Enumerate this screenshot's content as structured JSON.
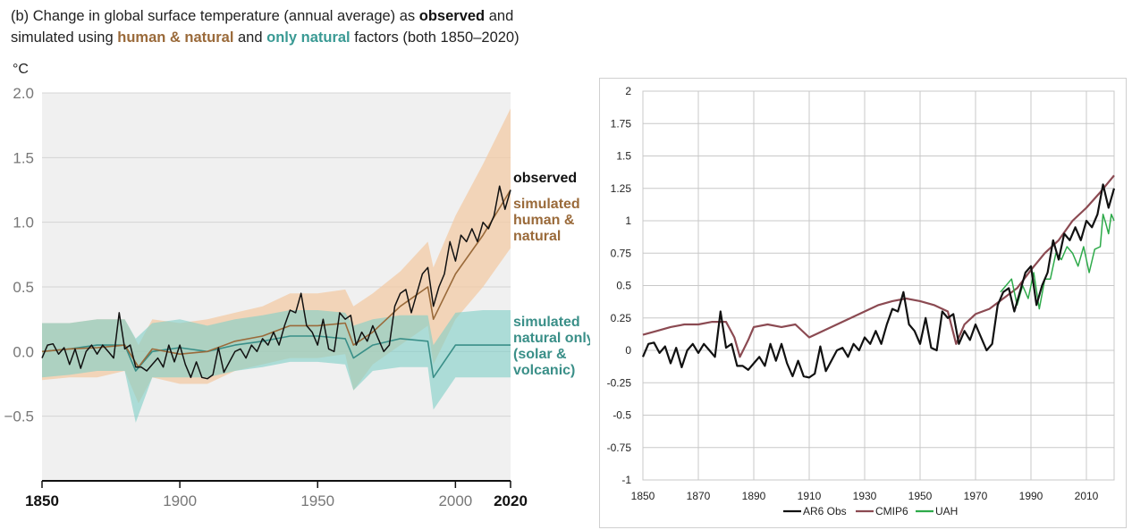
{
  "title": {
    "prefix": "(b) Change in global surface temperature (annual average) as ",
    "observed": "observed",
    "and1": " and",
    "line2_prefix": "simulated using ",
    "human": "human & natural",
    "and2": " and ",
    "natural": "only natural",
    "suffix": " factors (both 1850–2020)"
  },
  "colors": {
    "observed": "#111111",
    "human": "#9a6a3a",
    "human_band": "#f3cba6",
    "natural": "#3a8f88",
    "natural_band": "#7fcfc6",
    "plot_bg": "#f0f0f0",
    "cmip6": "#8b4a52",
    "uah": "#2eaa4a"
  },
  "chart_data": [
    {
      "type": "line",
      "title": "(b) Change in global surface temperature (annual average) as observed and simulated using human & natural and only natural factors (both 1850–2020)",
      "ylabel": "°C",
      "xlabel": "",
      "xlim": [
        1850,
        2020
      ],
      "ylim": [
        -1.0,
        2.0
      ],
      "yticks": [
        2.0,
        1.5,
        1.0,
        0.5,
        0.0,
        -0.5
      ],
      "ytick_labels": [
        "2.0",
        "1.5",
        "1.0",
        "0.5",
        "0.0",
        "−0.5"
      ],
      "xticks": [
        1850,
        1900,
        1950,
        2000,
        2020
      ],
      "xtick_labels": [
        "1850",
        "1900",
        "1950",
        "2000",
        "2020"
      ],
      "grid": true,
      "series_labels": {
        "observed": "observed",
        "human": [
          "simulated",
          "human &",
          "natural"
        ],
        "natural": [
          "simulated",
          "natural only",
          "(solar &",
          "volcanic)"
        ]
      },
      "series": [
        {
          "name": "observed",
          "x": [
            1850,
            1852,
            1854,
            1856,
            1858,
            1860,
            1862,
            1864,
            1866,
            1868,
            1870,
            1872,
            1874,
            1876,
            1878,
            1880,
            1882,
            1884,
            1886,
            1888,
            1890,
            1892,
            1894,
            1896,
            1898,
            1900,
            1902,
            1904,
            1906,
            1908,
            1910,
            1912,
            1914,
            1916,
            1918,
            1920,
            1922,
            1924,
            1926,
            1928,
            1930,
            1932,
            1934,
            1936,
            1938,
            1940,
            1942,
            1944,
            1946,
            1948,
            1950,
            1952,
            1954,
            1956,
            1958,
            1960,
            1962,
            1964,
            1966,
            1968,
            1970,
            1972,
            1974,
            1976,
            1978,
            1980,
            1982,
            1984,
            1986,
            1988,
            1990,
            1992,
            1994,
            1996,
            1998,
            2000,
            2002,
            2004,
            2006,
            2008,
            2010,
            2012,
            2014,
            2016,
            2018,
            2020
          ],
          "values": [
            -0.05,
            0.05,
            0.06,
            -0.02,
            0.03,
            -0.1,
            0.02,
            -0.13,
            0.0,
            0.05,
            -0.02,
            0.05,
            0.0,
            -0.05,
            0.3,
            0.02,
            0.05,
            -0.12,
            -0.12,
            -0.15,
            -0.1,
            -0.05,
            -0.12,
            0.05,
            -0.08,
            0.05,
            -0.1,
            -0.2,
            -0.08,
            -0.2,
            -0.21,
            -0.18,
            0.03,
            -0.16,
            -0.08,
            0.0,
            0.02,
            -0.05,
            0.05,
            0.0,
            0.1,
            0.05,
            0.15,
            0.05,
            0.2,
            0.32,
            0.3,
            0.45,
            0.2,
            0.15,
            0.05,
            0.25,
            0.02,
            0.0,
            0.3,
            0.25,
            0.28,
            0.05,
            0.15,
            0.08,
            0.2,
            0.1,
            0.0,
            0.05,
            0.35,
            0.45,
            0.48,
            0.3,
            0.45,
            0.6,
            0.65,
            0.35,
            0.5,
            0.6,
            0.85,
            0.7,
            0.9,
            0.85,
            0.95,
            0.85,
            1.0,
            0.95,
            1.05,
            1.28,
            1.1,
            1.25
          ]
        },
        {
          "name": "simulated human & natural",
          "x": [
            1850,
            1860,
            1870,
            1880,
            1885,
            1890,
            1900,
            1910,
            1920,
            1930,
            1940,
            1950,
            1960,
            1963,
            1970,
            1980,
            1990,
            1992,
            2000,
            2010,
            2020
          ],
          "values": [
            0.0,
            0.02,
            0.03,
            0.05,
            -0.12,
            0.02,
            -0.02,
            0.0,
            0.08,
            0.12,
            0.2,
            0.2,
            0.22,
            0.05,
            0.15,
            0.35,
            0.5,
            0.25,
            0.6,
            0.9,
            1.25
          ],
          "band_lower": [
            -0.22,
            -0.2,
            -0.2,
            -0.15,
            -0.4,
            -0.2,
            -0.25,
            -0.25,
            -0.15,
            -0.1,
            -0.05,
            -0.05,
            -0.02,
            -0.3,
            -0.1,
            0.05,
            0.2,
            -0.1,
            0.25,
            0.5,
            0.8
          ],
          "band_upper": [
            0.22,
            0.22,
            0.25,
            0.25,
            0.05,
            0.25,
            0.22,
            0.25,
            0.3,
            0.35,
            0.45,
            0.45,
            0.48,
            0.35,
            0.45,
            0.62,
            0.85,
            0.65,
            1.05,
            1.45,
            1.88
          ]
        },
        {
          "name": "simulated natural only (solar & volcanic)",
          "x": [
            1850,
            1860,
            1870,
            1880,
            1884,
            1890,
            1900,
            1910,
            1920,
            1930,
            1940,
            1950,
            1960,
            1963,
            1970,
            1980,
            1990,
            1992,
            2000,
            2010,
            2020
          ],
          "values": [
            0.0,
            0.02,
            0.05,
            0.05,
            -0.15,
            0.0,
            0.03,
            0.0,
            0.05,
            0.08,
            0.12,
            0.12,
            0.1,
            -0.05,
            0.05,
            0.1,
            0.08,
            -0.2,
            0.05,
            0.05,
            0.05
          ],
          "band_lower": [
            -0.2,
            -0.18,
            -0.15,
            -0.15,
            -0.55,
            -0.2,
            -0.2,
            -0.2,
            -0.15,
            -0.12,
            -0.08,
            -0.08,
            -0.1,
            -0.3,
            -0.15,
            -0.12,
            -0.12,
            -0.45,
            -0.2,
            -0.2,
            -0.2
          ],
          "band_upper": [
            0.22,
            0.22,
            0.25,
            0.25,
            0.1,
            0.22,
            0.25,
            0.2,
            0.25,
            0.28,
            0.32,
            0.32,
            0.3,
            0.2,
            0.25,
            0.28,
            0.28,
            0.05,
            0.3,
            0.32,
            0.32
          ]
        }
      ]
    },
    {
      "type": "line",
      "title": "",
      "xlabel": "",
      "ylabel": "",
      "xlim": [
        1850,
        2020
      ],
      "ylim": [
        -1,
        2
      ],
      "yticks": [
        2,
        1.75,
        1.5,
        1.25,
        1,
        0.75,
        0.5,
        0.25,
        0,
        -0.25,
        -0.5,
        -0.75,
        -1
      ],
      "ytick_labels": [
        "2",
        "1.75",
        "1.5",
        "1.25",
        "1",
        "0.75",
        "0.5",
        "0.25",
        "0",
        "-0.25",
        "-0.5",
        "-0.75",
        "-1"
      ],
      "xticks": [
        1850,
        1870,
        1890,
        1910,
        1930,
        1950,
        1970,
        1990,
        2010
      ],
      "xtick_labels": [
        "1850",
        "1870",
        "1890",
        "1910",
        "1930",
        "1950",
        "1970",
        "1990",
        "2010"
      ],
      "grid": true,
      "legend_position": "bottom",
      "legend": [
        "AR6 Obs",
        "CMIP6",
        "UAH"
      ],
      "series": [
        {
          "name": "AR6 Obs",
          "x": [
            1850,
            1852,
            1854,
            1856,
            1858,
            1860,
            1862,
            1864,
            1866,
            1868,
            1870,
            1872,
            1874,
            1876,
            1878,
            1880,
            1882,
            1884,
            1886,
            1888,
            1890,
            1892,
            1894,
            1896,
            1898,
            1900,
            1902,
            1904,
            1906,
            1908,
            1910,
            1912,
            1914,
            1916,
            1918,
            1920,
            1922,
            1924,
            1926,
            1928,
            1930,
            1932,
            1934,
            1936,
            1938,
            1940,
            1942,
            1944,
            1946,
            1948,
            1950,
            1952,
            1954,
            1956,
            1958,
            1960,
            1962,
            1964,
            1966,
            1968,
            1970,
            1972,
            1974,
            1976,
            1978,
            1980,
            1982,
            1984,
            1986,
            1988,
            1990,
            1992,
            1994,
            1996,
            1998,
            2000,
            2002,
            2004,
            2006,
            2008,
            2010,
            2012,
            2014,
            2016,
            2018,
            2020
          ],
          "values": [
            -0.05,
            0.05,
            0.06,
            -0.02,
            0.03,
            -0.1,
            0.02,
            -0.13,
            0.0,
            0.05,
            -0.02,
            0.05,
            0.0,
            -0.05,
            0.3,
            0.02,
            0.05,
            -0.12,
            -0.12,
            -0.15,
            -0.1,
            -0.05,
            -0.12,
            0.05,
            -0.08,
            0.05,
            -0.1,
            -0.2,
            -0.08,
            -0.2,
            -0.21,
            -0.18,
            0.03,
            -0.16,
            -0.08,
            0.0,
            0.02,
            -0.05,
            0.05,
            0.0,
            0.1,
            0.05,
            0.15,
            0.05,
            0.2,
            0.32,
            0.3,
            0.45,
            0.2,
            0.15,
            0.05,
            0.25,
            0.02,
            0.0,
            0.3,
            0.25,
            0.28,
            0.05,
            0.15,
            0.08,
            0.2,
            0.1,
            0.0,
            0.05,
            0.35,
            0.45,
            0.48,
            0.3,
            0.45,
            0.6,
            0.65,
            0.35,
            0.5,
            0.6,
            0.85,
            0.7,
            0.9,
            0.85,
            0.95,
            0.85,
            1.0,
            0.95,
            1.05,
            1.28,
            1.1,
            1.25
          ]
        },
        {
          "name": "CMIP6",
          "x": [
            1850,
            1855,
            1860,
            1865,
            1870,
            1875,
            1880,
            1883,
            1885,
            1888,
            1890,
            1895,
            1900,
            1905,
            1910,
            1915,
            1920,
            1925,
            1930,
            1935,
            1940,
            1945,
            1950,
            1955,
            1960,
            1963,
            1966,
            1970,
            1975,
            1980,
            1985,
            1990,
            1995,
            2000,
            2005,
            2010,
            2015,
            2020
          ],
          "values": [
            0.12,
            0.15,
            0.18,
            0.2,
            0.2,
            0.22,
            0.22,
            0.1,
            -0.05,
            0.08,
            0.18,
            0.2,
            0.18,
            0.2,
            0.1,
            0.15,
            0.2,
            0.25,
            0.3,
            0.35,
            0.38,
            0.4,
            0.38,
            0.35,
            0.3,
            0.05,
            0.2,
            0.28,
            0.32,
            0.4,
            0.48,
            0.62,
            0.75,
            0.85,
            1.0,
            1.1,
            1.22,
            1.35
          ]
        },
        {
          "name": "UAH",
          "x": [
            1979,
            1981,
            1983,
            1985,
            1987,
            1989,
            1991,
            1993,
            1995,
            1997,
            1999,
            2001,
            2003,
            2005,
            2007,
            2009,
            2011,
            2013,
            2015,
            2016,
            2017,
            2018,
            2019,
            2020
          ],
          "values": [
            0.45,
            0.5,
            0.55,
            0.35,
            0.5,
            0.4,
            0.6,
            0.32,
            0.55,
            0.55,
            0.75,
            0.7,
            0.8,
            0.75,
            0.65,
            0.8,
            0.6,
            0.78,
            0.8,
            1.05,
            0.98,
            0.9,
            1.05,
            1.0
          ]
        }
      ]
    }
  ]
}
